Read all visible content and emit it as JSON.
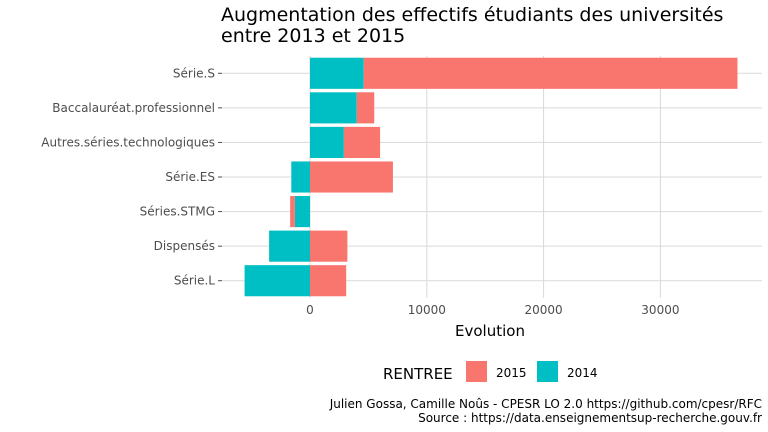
{
  "chart_data": {
    "type": "bar",
    "orientation": "horizontal",
    "stacked": true,
    "title_lines": [
      "Augmentation des effectifs étudiants des universités",
      "entre 2013 et 2015"
    ],
    "xlabel": "Evolution",
    "ylabel": "",
    "xlim": [
      -6500,
      37500
    ],
    "x_ticks": [
      0,
      10000,
      20000,
      30000
    ],
    "x_tick_labels": [
      "0",
      "10000",
      "20000",
      "30000"
    ],
    "grid": true,
    "categories": [
      "Série.S",
      "Baccalauréat.professionnel",
      "Autres.séries.technologiques",
      "Série.ES",
      "Séries.STMG",
      "Dispensés",
      "Série.L"
    ],
    "series": [
      {
        "name": "2015",
        "color": "#F8766D",
        "values": [
          32000,
          1500,
          3100,
          7100,
          -400,
          3200,
          3100
        ]
      },
      {
        "name": "2014",
        "color": "#00BFC4",
        "values": [
          4600,
          4000,
          2900,
          -1600,
          -1300,
          -3500,
          -5600
        ]
      }
    ],
    "legend": {
      "title": "RENTREE",
      "position": "bottom"
    },
    "caption_lines": [
      "Julien Gossa, Camille Noûs - CPESR LO 2.0 https://github.com/cpesr/RFC",
      "Source : https://data.enseignementsup-recherche.gouv.fr"
    ]
  }
}
